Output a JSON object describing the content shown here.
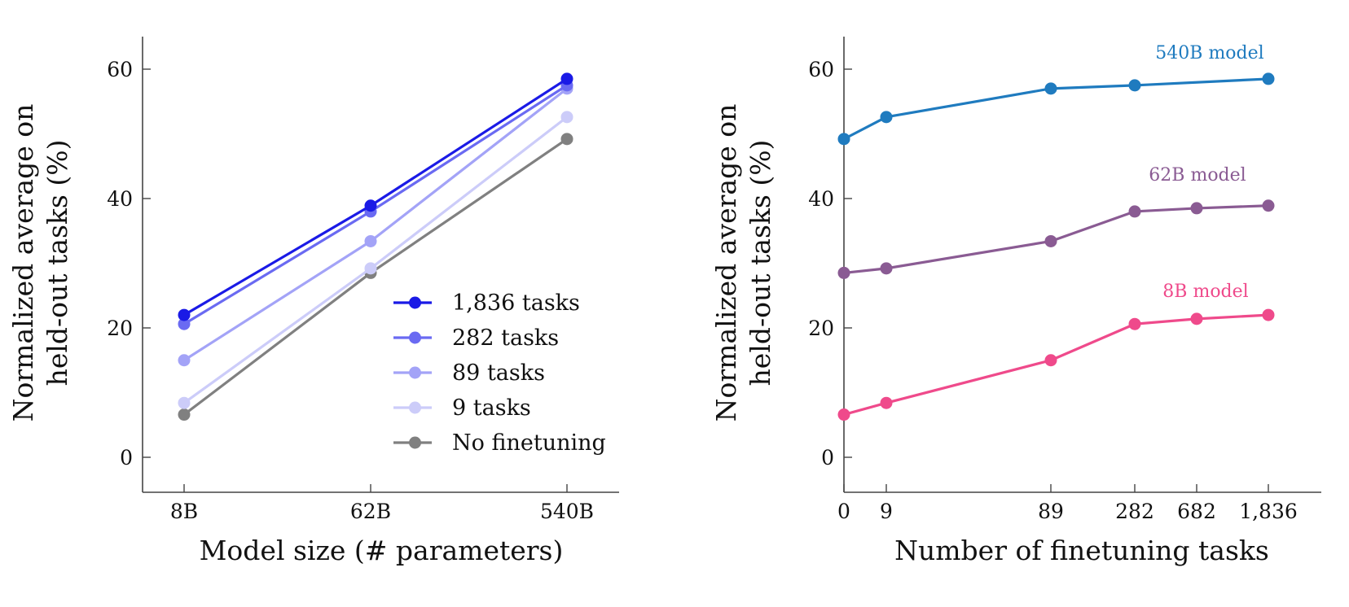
{
  "chart_data": [
    {
      "type": "line",
      "xlabel": "Model size (# parameters)",
      "ylabel_lines": [
        "Normalized average on",
        "held-out tasks (%)"
      ],
      "x": [
        "8B",
        "62B",
        "540B"
      ],
      "yticks": [
        0,
        20,
        40,
        60
      ],
      "ylim": [
        -5,
        65
      ],
      "legend_position": "lower-right",
      "series": [
        {
          "name": "1,836 tasks",
          "color": "#1a1ae6",
          "values": [
            22.0,
            38.9,
            58.5
          ]
        },
        {
          "name": "282 tasks",
          "color": "#6a6af2",
          "values": [
            20.6,
            38.0,
            57.5
          ]
        },
        {
          "name": "89 tasks",
          "color": "#a3a3f7",
          "values": [
            15.0,
            33.4,
            57.0
          ]
        },
        {
          "name": "9 tasks",
          "color": "#ccccf9",
          "values": [
            8.4,
            29.2,
            52.6
          ]
        },
        {
          "name": "No finetuning",
          "color": "#808080",
          "values": [
            6.6,
            28.5,
            49.2
          ]
        }
      ]
    },
    {
      "type": "line",
      "xlabel": "Number of finetuning tasks",
      "ylabel_lines": [
        "Normalized average on",
        "held-out tasks (%)"
      ],
      "x": [
        "0",
        "9",
        "89",
        "282",
        "682",
        "1,836"
      ],
      "yticks": [
        0,
        20,
        40,
        60
      ],
      "ylim": [
        -5,
        65
      ],
      "series": [
        {
          "name": "540B model",
          "color": "#1f7bbf",
          "values": [
            49.2,
            52.6,
            57.0,
            57.5,
            null,
            58.5
          ]
        },
        {
          "name": "62B model",
          "color": "#8a5b93",
          "values": [
            28.5,
            29.2,
            33.4,
            38.0,
            38.5,
            38.9
          ]
        },
        {
          "name": "8B model",
          "color": "#ef4a8b",
          "values": [
            6.6,
            8.4,
            15.0,
            20.6,
            21.4,
            22.0
          ]
        }
      ]
    }
  ]
}
